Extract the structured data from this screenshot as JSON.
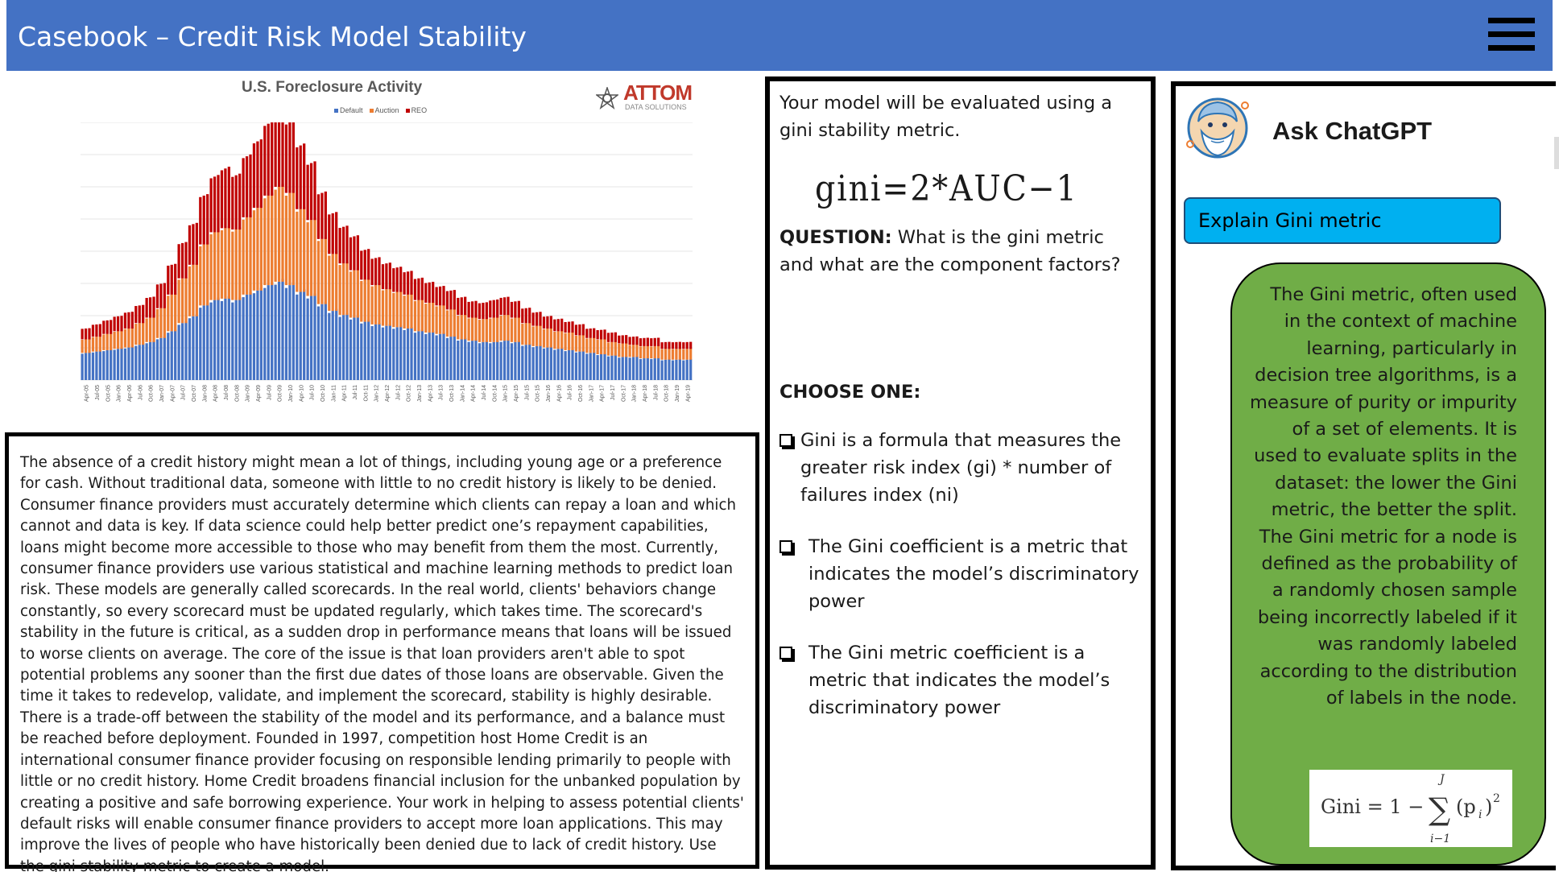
{
  "header": {
    "title": "Casebook – Credit Risk Model Stability",
    "menu_icon": "hamburger-menu-icon"
  },
  "foreclosure_chart": {
    "logo_text": "ATTOM",
    "logo_subtext": "DATA SOLUTIONS",
    "chart_data": {
      "type": "bar",
      "stacked": true,
      "title": "U.S. Foreclosure Activity",
      "legend": [
        "Default",
        "Auction",
        "REO"
      ],
      "legend_position": "top",
      "colors": {
        "Default": "#4472c4",
        "Auction": "#ed7d31",
        "REO": "#c00000"
      },
      "xlabel": "",
      "ylabel": "",
      "grid": true,
      "x": [
        "Apr-05",
        "Jul-05",
        "Oct-05",
        "Jan-06",
        "Apr-06",
        "Jul-06",
        "Oct-06",
        "Jan-07",
        "Apr-07",
        "Jul-07",
        "Oct-07",
        "Jan-08",
        "Apr-08",
        "Jul-08",
        "Oct-08",
        "Jan-09",
        "Apr-09",
        "Jul-09",
        "Oct-09",
        "Jan-10",
        "Apr-10",
        "Jul-10",
        "Oct-10",
        "Jan-11",
        "Apr-11",
        "Jul-11",
        "Oct-11",
        "Jan-12",
        "Apr-12",
        "Jul-12",
        "Oct-12",
        "Jan-13",
        "Apr-13",
        "Jul-13",
        "Oct-13",
        "Jan-14",
        "Apr-14",
        "Jul-14",
        "Oct-14",
        "Jan-15",
        "Apr-15",
        "Jul-15",
        "Oct-15",
        "Jan-16",
        "Apr-16",
        "Jul-16",
        "Oct-16",
        "Jan-17",
        "Apr-17",
        "Jul-17",
        "Oct-17",
        "Jan-18",
        "Apr-18",
        "Jul-18",
        "Oct-18",
        "Jan-19",
        "Apr-19"
      ],
      "series": [
        {
          "name": "Default",
          "values": [
            40,
            42,
            44,
            46,
            48,
            52,
            56,
            62,
            72,
            84,
            94,
            110,
            118,
            120,
            118,
            126,
            132,
            140,
            145,
            140,
            130,
            124,
            112,
            102,
            96,
            92,
            86,
            82,
            80,
            78,
            76,
            72,
            70,
            68,
            64,
            60,
            58,
            56,
            56,
            58,
            56,
            52,
            50,
            48,
            46,
            44,
            42,
            40,
            38,
            36,
            34,
            34,
            32,
            32,
            30,
            30,
            30
          ]
        },
        {
          "name": "Auction",
          "values": [
            20,
            22,
            24,
            26,
            28,
            32,
            36,
            44,
            54,
            66,
            76,
            90,
            100,
            104,
            104,
            114,
            122,
            132,
            140,
            136,
            122,
            112,
            96,
            84,
            76,
            70,
            62,
            58,
            54,
            52,
            50,
            46,
            44,
            42,
            40,
            36,
            34,
            34,
            36,
            38,
            36,
            32,
            30,
            28,
            26,
            26,
            24,
            22,
            22,
            20,
            20,
            18,
            18,
            18,
            16,
            16,
            16
          ]
        },
        {
          "name": "REO",
          "values": [
            16,
            18,
            20,
            22,
            24,
            26,
            30,
            36,
            44,
            52,
            60,
            72,
            82,
            88,
            80,
            90,
            98,
            106,
            110,
            104,
            94,
            84,
            68,
            60,
            54,
            50,
            44,
            40,
            38,
            36,
            34,
            32,
            30,
            28,
            28,
            26,
            24,
            24,
            26,
            26,
            24,
            22,
            20,
            18,
            18,
            16,
            16,
            14,
            14,
            14,
            12,
            12,
            12,
            12,
            10,
            10,
            10
          ]
        }
      ],
      "ylim": [
        0,
        380
      ]
    }
  },
  "case_text": "The absence of a credit history might mean a lot of things, including young age or a preference for cash. Without traditional data, someone with little to no credit history is likely to be denied. Consumer finance providers must accurately determine which clients can repay a loan and which cannot and data is key. If data science could help better predict one’s repayment capabilities, loans might become more accessible to those who may benefit from them the most.   Currently, consumer finance providers use various statistical and machine learning methods to predict loan risk. These models are generally called scorecards. In the real world, clients' behaviors change constantly, so every scorecard must be updated regularly, which takes time. The scorecard's stability in the future is critical, as a sudden drop in performance means that loans will be issued to worse clients on average. The core of the issue is that loan providers aren't able to spot potential problems any sooner than the first due dates of those loans are observable. Given the time it takes to redevelop, validate, and implement the scorecard, stability is highly desirable. There is a trade-off between the stability of the model and its performance, and a balance must be reached before deployment. Founded in 1997, competition host Home Credit is an international consumer finance provider focusing on responsible lending primarily to people with little or no credit history. Home Credit broadens financial inclusion for the unbanked population by creating a positive and safe borrowing experience.  Your work in helping to assess potential clients' default risks will enable consumer finance providers to accept more loan applications. This may improve the lives of people who have historically been denied due to lack of credit history.    Use the gini stability metric to create a model.",
  "question_panel": {
    "intro": "Your model will be evaluated using a gini stability metric.",
    "formula": "gini=2*AUC−1",
    "question_label": "QUESTION:",
    "question_text": " What is the gini metric and what are the component factors?",
    "choose_label": "CHOOSE ONE:",
    "options": [
      "Gini is a formula that measures the greater risk index (gi) * number of failures index (ni)",
      "The Gini coefficient is a metric that indicates the model’s discriminatory power",
      "The Gini metric coefficient is a metric that indicates the model’s discriminatory power"
    ]
  },
  "chat_panel": {
    "title": "Ask ChatGPT",
    "avatar_icon": "philosopher-avatar-icon",
    "prompt_button": "Explain Gini metric",
    "answer": "The Gini metric, often used in the context of machine learning, particularly in decision tree algorithms, is a measure of purity or impurity of a set of elements. It is used to evaluate splits in the dataset: the lower the Gini metric, the better the split. The Gini metric for a node is defined as the probability of a randomly chosen sample being incorrectly labeled if it was randomly labeled according to the distribution of labels in the node.",
    "formula_lhs": "Gini = 1 −",
    "formula_upper": "J",
    "formula_lower": "i−1",
    "formula_term": "(p",
    "formula_sub": "i",
    "formula_close": ")",
    "formula_exp": "2",
    "bubble_color": "#70ad47",
    "button_color": "#00b0f0"
  }
}
